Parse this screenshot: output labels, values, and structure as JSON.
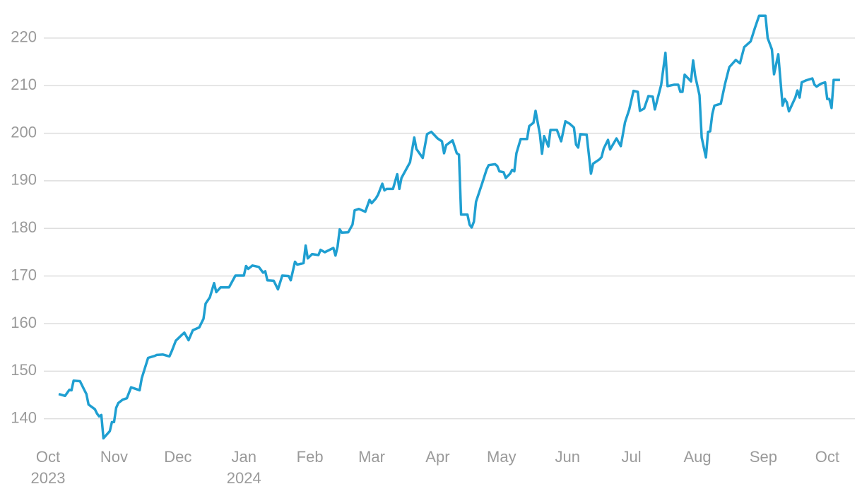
{
  "chart_data": {
    "type": "line",
    "x": [
      "2023-10-06",
      "2023-10-09",
      "2023-10-11",
      "2023-10-12",
      "2023-10-13",
      "2023-10-16",
      "2023-10-18",
      "2023-10-19",
      "2023-10-20",
      "2023-10-23",
      "2023-10-24",
      "2023-10-25",
      "2023-10-26",
      "2023-10-27",
      "2023-10-30",
      "2023-10-31",
      "2023-11-01",
      "2023-11-02",
      "2023-11-03",
      "2023-11-05",
      "2023-11-07",
      "2023-11-09",
      "2023-11-13",
      "2023-11-14",
      "2023-11-17",
      "2023-11-20",
      "2023-11-21",
      "2023-11-24",
      "2023-11-27",
      "2023-11-28",
      "2023-11-30",
      "2023-12-03",
      "2023-12-04",
      "2023-12-06",
      "2023-12-08",
      "2023-12-11",
      "2023-12-13",
      "2023-12-14",
      "2023-12-16",
      "2023-12-18",
      "2023-12-19",
      "2023-12-21",
      "2023-12-25",
      "2023-12-28",
      "2024-01-01",
      "2024-01-02",
      "2024-01-03",
      "2024-01-05",
      "2024-01-08",
      "2024-01-10",
      "2024-01-11",
      "2024-01-12",
      "2024-01-15",
      "2024-01-17",
      "2024-01-19",
      "2024-01-22",
      "2024-01-23",
      "2024-01-25",
      "2024-01-26",
      "2024-01-29",
      "2024-01-30",
      "2024-01-31",
      "2024-02-02",
      "2024-02-05",
      "2024-02-06",
      "2024-02-08",
      "2024-02-12",
      "2024-02-13",
      "2024-02-14",
      "2024-02-15",
      "2024-02-16",
      "2024-02-19",
      "2024-02-21",
      "2024-02-22",
      "2024-02-24",
      "2024-02-27",
      "2024-02-29",
      "2024-03-01",
      "2024-03-03",
      "2024-03-04",
      "2024-03-06",
      "2024-03-07",
      "2024-03-08",
      "2024-03-11",
      "2024-03-13",
      "2024-03-14",
      "2024-03-15",
      "2024-03-19",
      "2024-03-21",
      "2024-03-22",
      "2024-03-25",
      "2024-03-27",
      "2024-03-29",
      "2024-04-01",
      "2024-04-03",
      "2024-04-04",
      "2024-04-05",
      "2024-04-08",
      "2024-04-10",
      "2024-04-11",
      "2024-04-12",
      "2024-04-15",
      "2024-04-16",
      "2024-04-17",
      "2024-04-18",
      "2024-04-19",
      "2024-04-22",
      "2024-04-24",
      "2024-04-25",
      "2024-04-28",
      "2024-04-29",
      "2024-04-30",
      "2024-05-02",
      "2024-05-03",
      "2024-05-05",
      "2024-05-06",
      "2024-05-07",
      "2024-05-08",
      "2024-05-10",
      "2024-05-13",
      "2024-05-14",
      "2024-05-16",
      "2024-05-17",
      "2024-05-19",
      "2024-05-20",
      "2024-05-21",
      "2024-05-23",
      "2024-05-24",
      "2024-05-27",
      "2024-05-29",
      "2024-05-31",
      "2024-06-02",
      "2024-06-04",
      "2024-06-05",
      "2024-06-06",
      "2024-06-07",
      "2024-06-10",
      "2024-06-12",
      "2024-06-13",
      "2024-06-16",
      "2024-06-17",
      "2024-06-18",
      "2024-06-20",
      "2024-06-21",
      "2024-06-24",
      "2024-06-26",
      "2024-06-28",
      "2024-06-30",
      "2024-07-02",
      "2024-07-04",
      "2024-07-05",
      "2024-07-07",
      "2024-07-09",
      "2024-07-11",
      "2024-07-12",
      "2024-07-15",
      "2024-07-17",
      "2024-07-18",
      "2024-07-21",
      "2024-07-23",
      "2024-07-24",
      "2024-07-25",
      "2024-07-26",
      "2024-07-29",
      "2024-07-30",
      "2024-07-31",
      "2024-08-02",
      "2024-08-03",
      "2024-08-05",
      "2024-08-06",
      "2024-08-07",
      "2024-08-08",
      "2024-08-09",
      "2024-08-12",
      "2024-08-14",
      "2024-08-16",
      "2024-08-19",
      "2024-08-21",
      "2024-08-23",
      "2024-08-26",
      "2024-08-28",
      "2024-08-30",
      "2024-09-02",
      "2024-09-03",
      "2024-09-05",
      "2024-09-06",
      "2024-09-08",
      "2024-09-10",
      "2024-09-11",
      "2024-09-12",
      "2024-09-13",
      "2024-09-16",
      "2024-09-17",
      "2024-09-18",
      "2024-09-19",
      "2024-09-21",
      "2024-09-24",
      "2024-09-25",
      "2024-09-26",
      "2024-09-28",
      "2024-09-30",
      "2024-10-01",
      "2024-10-02",
      "2024-10-03",
      "2024-10-04",
      "2024-10-07"
    ],
    "values": [
      145.2,
      144.8,
      146.1,
      146.0,
      148.0,
      147.9,
      146.1,
      145.2,
      143.0,
      142.0,
      141.1,
      140.5,
      140.8,
      135.9,
      137.4,
      139.3,
      139.3,
      142.3,
      143.3,
      144.0,
      144.3,
      146.6,
      146.0,
      148.5,
      152.8,
      153.2,
      153.4,
      153.5,
      153.1,
      154.1,
      156.4,
      157.7,
      158.1,
      156.5,
      158.6,
      159.2,
      161.0,
      164.2,
      165.5,
      168.5,
      166.6,
      167.6,
      167.6,
      170.1,
      170.1,
      172.1,
      171.5,
      172.2,
      171.9,
      170.7,
      171.0,
      169.1,
      169.0,
      167.2,
      170.1,
      170.0,
      169.1,
      173.0,
      172.4,
      172.7,
      176.4,
      173.7,
      174.6,
      174.4,
      175.5,
      175.0,
      175.9,
      174.3,
      176.2,
      179.8,
      179.1,
      179.2,
      180.8,
      183.8,
      184.1,
      183.5,
      186.0,
      185.3,
      186.3,
      187.1,
      189.4,
      188.0,
      188.3,
      188.3,
      191.4,
      188.3,
      190.6,
      193.9,
      199.1,
      196.7,
      194.8,
      199.8,
      200.3,
      198.9,
      198.3,
      195.8,
      197.5,
      198.5,
      195.8,
      195.5,
      182.9,
      182.9,
      180.8,
      180.2,
      181.4,
      185.6,
      189.6,
      192.4,
      193.3,
      193.5,
      193.1,
      192.0,
      191.8,
      190.6,
      191.5,
      192.3,
      192.0,
      195.8,
      198.8,
      198.8,
      201.5,
      202.2,
      204.7,
      199.8,
      195.7,
      199.4,
      197.2,
      200.7,
      200.7,
      198.3,
      202.5,
      202.0,
      201.2,
      197.6,
      197.0,
      199.8,
      199.7,
      191.5,
      193.6,
      194.5,
      195.0,
      196.8,
      198.6,
      196.6,
      198.9,
      197.3,
      202.3,
      205.0,
      208.9,
      208.7,
      204.7,
      205.2,
      207.8,
      207.7,
      205.0,
      210.2,
      216.9,
      209.9,
      210.2,
      210.2,
      208.7,
      208.7,
      212.3,
      210.9,
      215.3,
      212.0,
      208.0,
      199.1,
      194.9,
      200.3,
      200.4,
      204.0,
      205.8,
      206.2,
      210.4,
      213.9,
      215.4,
      214.7,
      218.1,
      219.3,
      222.1,
      224.7,
      224.7,
      220.0,
      217.6,
      212.4,
      216.6,
      205.8,
      207.2,
      206.5,
      204.6,
      207.5,
      209.0,
      207.5,
      210.7,
      211.1,
      211.5,
      210.2,
      209.8,
      210.4,
      210.7,
      207.2,
      207.2,
      205.3,
      211.2,
      211.2
    ],
    "color": "#1f9fd1",
    "xlim": [
      "2023-09-29",
      "2024-10-14"
    ],
    "xticks": [
      {
        "value": "2023-10-01",
        "label": "Oct"
      },
      {
        "value": "2023-11-01",
        "label": "Nov"
      },
      {
        "value": "2023-12-01",
        "label": "Dec"
      },
      {
        "value": "2024-01-01",
        "label": "Jan"
      },
      {
        "value": "2024-02-01",
        "label": "Feb"
      },
      {
        "value": "2024-03-01",
        "label": "Mar"
      },
      {
        "value": "2024-04-01",
        "label": "Apr"
      },
      {
        "value": "2024-05-01",
        "label": "May"
      },
      {
        "value": "2024-06-01",
        "label": "Jun"
      },
      {
        "value": "2024-07-01",
        "label": "Jul"
      },
      {
        "value": "2024-08-01",
        "label": "Aug"
      },
      {
        "value": "2024-09-01",
        "label": "Sep"
      },
      {
        "value": "2024-10-01",
        "label": "Oct"
      }
    ],
    "year_labels": [
      {
        "value": "2023-10-01",
        "label": "2023"
      },
      {
        "value": "2024-01-01",
        "label": "2024"
      }
    ],
    "ylim": [
      135.2,
      228
    ],
    "yticks": [
      140,
      150,
      160,
      170,
      180,
      190,
      200,
      210,
      220
    ],
    "grid": true
  }
}
